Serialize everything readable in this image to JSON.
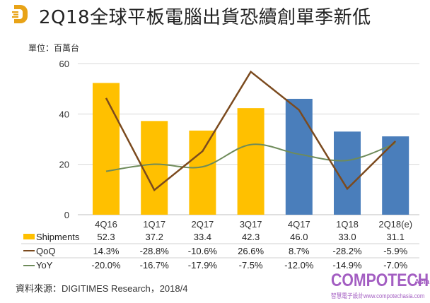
{
  "header": {
    "title": "2Q18全球平板電腦出貨恐續創單季新低",
    "unit": "單位：百萬台",
    "logo_icon": "digitimes-d-logo-icon"
  },
  "colors": {
    "bar_gold": "#FFC000",
    "bar_blue": "#4A7EBB",
    "qoq_line": "#7B4A1E",
    "yoy_line": "#6E8B5A",
    "grid": "#d9d9d9",
    "logo": "#E8A317",
    "brand": "#a35ec2"
  },
  "chart_data": {
    "type": "bar",
    "title": "2Q18全球平板電腦出貨恐續創單季新低",
    "ylabel": "單位：百萬台",
    "xlabel": "",
    "ylim": [
      0,
      60
    ],
    "yticks": [
      "0",
      "20",
      "40",
      "60"
    ],
    "grid": true,
    "categories": [
      "4Q16",
      "1Q17",
      "2Q17",
      "3Q17",
      "4Q17",
      "1Q18",
      "2Q18(e)"
    ],
    "series": [
      {
        "name": "Shipments",
        "kind": "bar",
        "values": [
          52.3,
          37.2,
          33.4,
          42.3,
          46.0,
          33.0,
          31.1
        ],
        "labels": [
          "52.3",
          "37.2",
          "33.4",
          "42.3",
          "46.0",
          "33.0",
          "31.1"
        ],
        "bar_colors": [
          "gold",
          "gold",
          "gold",
          "gold",
          "blue",
          "blue",
          "blue"
        ]
      },
      {
        "name": "QoQ",
        "kind": "line",
        "unit": "%",
        "values": [
          14.3,
          -28.8,
          -10.6,
          26.6,
          8.7,
          -28.2,
          -5.9
        ],
        "labels": [
          "14.3%",
          "-28.8%",
          "-10.6%",
          "26.6%",
          "8.7%",
          "-28.2%",
          "-5.9%"
        ]
      },
      {
        "name": "YoY",
        "kind": "line",
        "unit": "%",
        "smooth": true,
        "values": [
          -20.0,
          -16.7,
          -17.9,
          -7.5,
          -12.0,
          -14.9,
          -7.0
        ],
        "labels": [
          "-20.0%",
          "-16.7%",
          "-17.9%",
          "-7.5%",
          "-12.0%",
          "-14.9%",
          "-7.0%"
        ]
      }
    ],
    "secondary_axis": {
      "zero_at_primary": 34.2,
      "primary_units_per_percent": 0.848
    },
    "legend": "bottom-table"
  },
  "footer": {
    "source": "資料來源：DIGITIMES Research，2018/4",
    "brand_name": "COMPOTECH",
    "brand_suffix": "Asia",
    "brand_tagline": "智慧電子設計www.compotechasia.com"
  }
}
